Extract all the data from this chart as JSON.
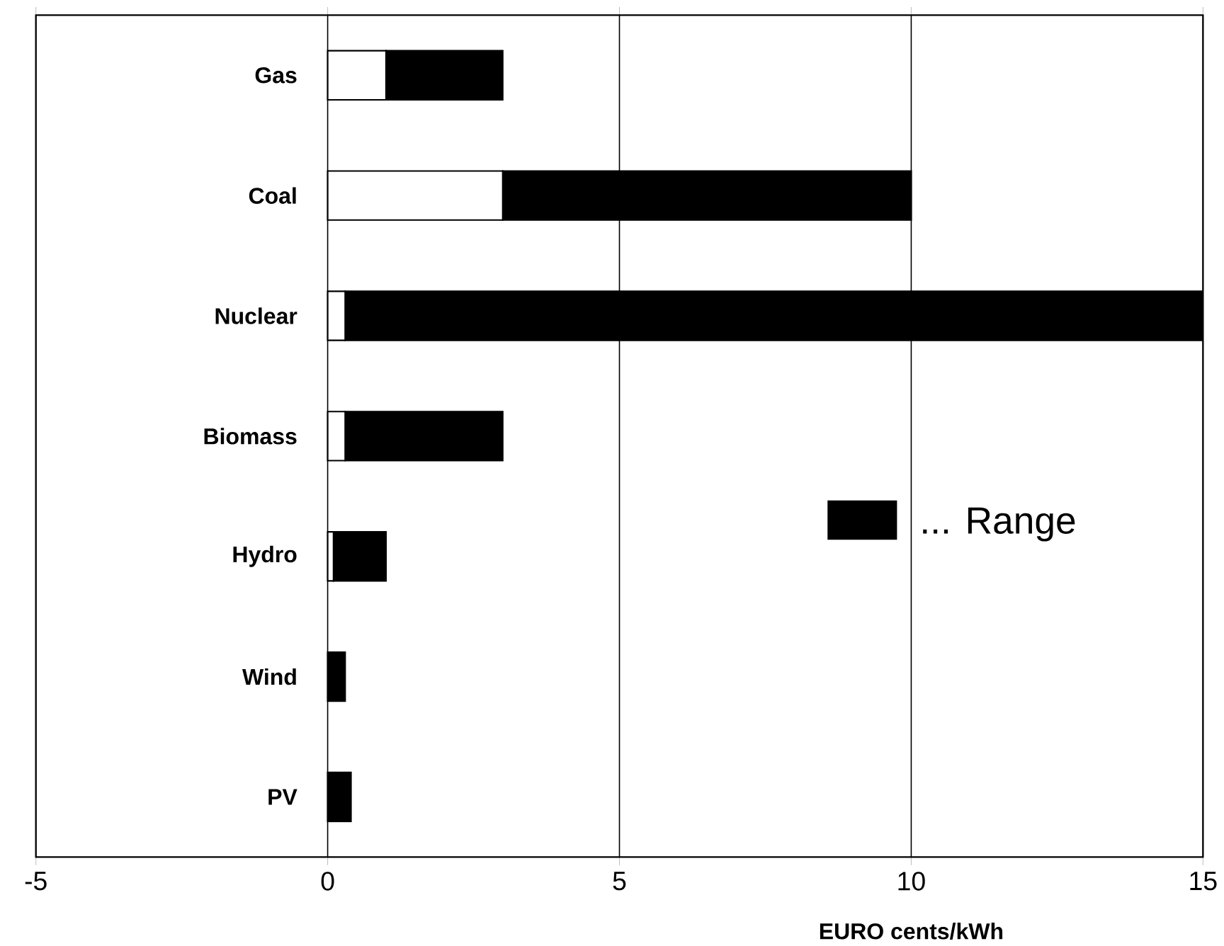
{
  "chart_data": {
    "type": "bar",
    "orientation": "horizontal",
    "stacked": true,
    "categories": [
      "Gas",
      "Coal",
      "Nuclear",
      "Biomass",
      "Hydro",
      "Wind",
      "PV"
    ],
    "series": [
      {
        "color": "#ffffff",
        "values": [
          1,
          3,
          0.3,
          0.3,
          0.1,
          0,
          0
        ]
      },
      {
        "name": "... Range",
        "color": "#000000",
        "values": [
          2,
          7,
          14.7,
          2.7,
          0.9,
          0.3,
          0.4
        ]
      }
    ],
    "xlabel": "EURO cents/kWh",
    "xlim": [
      -5,
      15
    ],
    "xticks": [
      -5,
      0,
      5,
      10,
      15
    ],
    "grid": "x",
    "legend": "right"
  }
}
